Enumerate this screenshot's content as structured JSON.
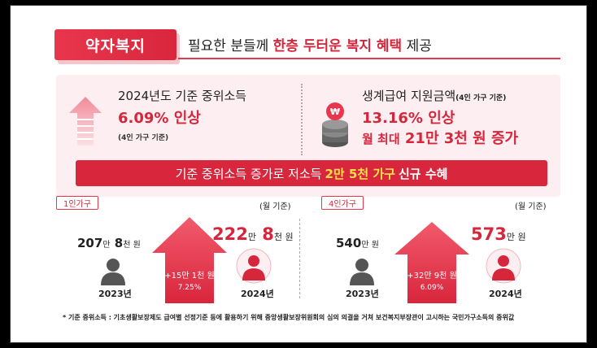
{
  "header": {
    "tag": "약자복지",
    "text_before": "필요한 분들께",
    "text_highlight": "한층 두터운 복지 혜택",
    "text_after": "제공"
  },
  "left_info": {
    "line1": "2024년도 기준 중위소득",
    "big": "6.09% 인상",
    "small": "(4인 가구 기준)"
  },
  "right_info": {
    "line1": "생계급여 지원금액",
    "line1_small": "(4인 가구 기준)",
    "big1": "13.16% 인상",
    "big2_prefix": "월 최대",
    "big2_value": "21만 3천 원 증가"
  },
  "banner": {
    "before": "기준 중위소득 증가로 저소득",
    "highlight": "2만 5천 가구",
    "after": "신규 수혜"
  },
  "panel_1": {
    "pill": "1인가구",
    "unit": "(월 기준)",
    "old_value": "207",
    "old_unit1": "만",
    "old_value2": "8",
    "old_unit2": "천 원",
    "new_value": "222",
    "new_unit1": "만",
    "new_value2": "8",
    "new_unit2": "천 원",
    "diff": "+15만 1천 원",
    "pct": "7.25%",
    "year_old": "2023년",
    "year_new": "2024년"
  },
  "panel_4": {
    "pill": "4인가구",
    "unit": "(월 기준)",
    "old_value": "540",
    "old_unit1": "만 원",
    "new_value": "573",
    "new_unit1": "만 원",
    "diff": "+32만 9천 원",
    "pct": "6.09%",
    "year_old": "2023년",
    "year_new": "2024년"
  },
  "footnote": "* 기준 중위소득 : 기초생활보장제도 급여별 선정기준 등에 활용하기 위해 중앙생활보장위원회의 심의 의결을 거쳐 보건복지부장관이 고시하는 국민가구소득의 중위값",
  "colors": {
    "accent": "#d6263c",
    "pink_bg": "#fdeff1",
    "highlight": "#ffe14a"
  }
}
